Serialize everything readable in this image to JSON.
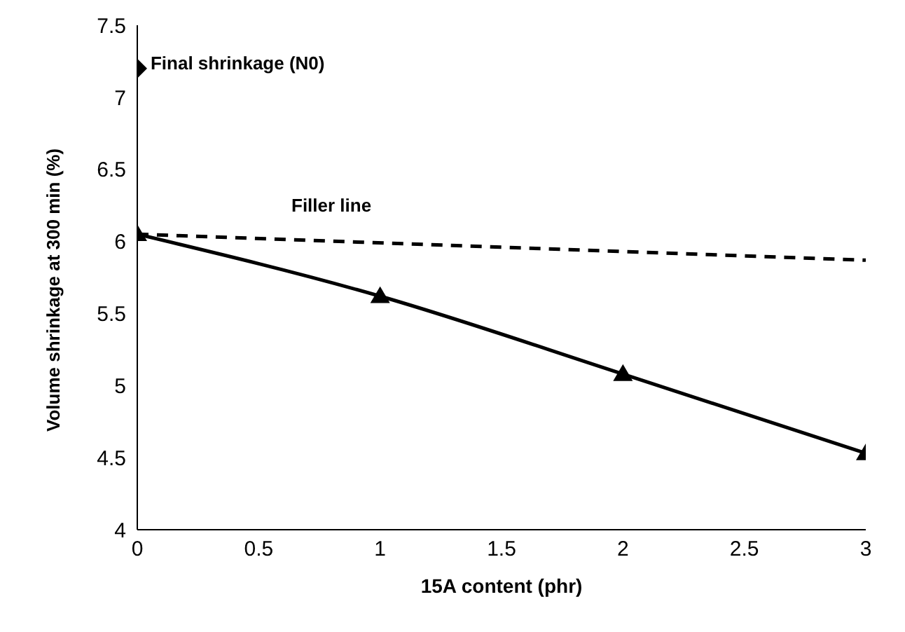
{
  "chart_data": {
    "type": "line",
    "xlabel": "15A content (phr)",
    "ylabel": "Volume shrinkage at 300 min (%)",
    "xlim": [
      0,
      3
    ],
    "xticks": [
      0,
      0.5,
      1,
      1.5,
      2,
      2.5,
      3
    ],
    "ylim": [
      4,
      7.5
    ],
    "yticks": [
      4,
      4.5,
      5,
      5.5,
      6,
      6.5,
      7,
      7.5
    ],
    "grid": false,
    "legend": false,
    "series": [
      {
        "color": "#000000",
        "marker": "triangle",
        "line_style": "solid",
        "x": [
          0,
          1,
          2,
          3
        ],
        "values": [
          6.05,
          5.62,
          5.08,
          4.53
        ]
      },
      {
        "type": "line",
        "name": "Filler line",
        "color": "#000000",
        "marker": "none",
        "line_style": "dashed",
        "x": [
          0,
          3
        ],
        "values": [
          6.05,
          5.87
        ]
      },
      {
        "type": "scatter",
        "name": "Final shrinkage (N0)",
        "color": "#000000",
        "marker": "diamond",
        "x": [
          0
        ],
        "values": [
          7.2
        ]
      }
    ]
  }
}
